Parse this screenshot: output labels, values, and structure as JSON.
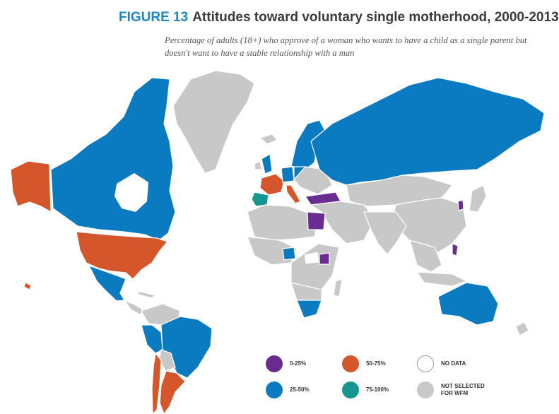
{
  "header": {
    "figure_label": "FIGURE 13",
    "title": "Attitudes toward voluntary single motherhood, 2000-2013",
    "subtitle": "Percentage of adults (18+) who approve of a woman who wants to have a child as a single parent but doesn't want to have a stable relationship with a man"
  },
  "legend": [
    {
      "label": "0-25%",
      "color": "#6a2c91"
    },
    {
      "label": "50-75%",
      "color": "#d4562a"
    },
    {
      "label": "NO DATA",
      "color": "#ffffff"
    },
    {
      "label": "25-50%",
      "color": "#0b7bc1"
    },
    {
      "label": "75-100%",
      "color": "#15968f"
    },
    {
      "label": "NOT SELECTED FOR WFM",
      "color": "#c8c8c8"
    }
  ],
  "map_regions": [
    {
      "name": "Canada",
      "category": "25-50%"
    },
    {
      "name": "Alaska",
      "category": "50-75%"
    },
    {
      "name": "United States",
      "category": "50-75%"
    },
    {
      "name": "Mexico",
      "category": "25-50%"
    },
    {
      "name": "Brazil",
      "category": "25-50%"
    },
    {
      "name": "Peru",
      "category": "25-50%"
    },
    {
      "name": "Argentina",
      "category": "50-75%"
    },
    {
      "name": "Chile",
      "category": "50-75%"
    },
    {
      "name": "Russia",
      "category": "25-50%"
    },
    {
      "name": "Scandinavia",
      "category": "25-50%"
    },
    {
      "name": "United Kingdom",
      "category": "25-50%"
    },
    {
      "name": "Germany",
      "category": "25-50%"
    },
    {
      "name": "Poland",
      "category": "25-50%"
    },
    {
      "name": "France",
      "category": "50-75%"
    },
    {
      "name": "Spain",
      "category": "75-100%"
    },
    {
      "name": "Italy",
      "category": "50-75%"
    },
    {
      "name": "Turkey",
      "category": "0-25%"
    },
    {
      "name": "Egypt",
      "category": "0-25%"
    },
    {
      "name": "Nigeria",
      "category": "25-50%"
    },
    {
      "name": "Kenya",
      "category": "0-25%"
    },
    {
      "name": "South Africa",
      "category": "25-50%"
    },
    {
      "name": "Australia",
      "category": "25-50%"
    },
    {
      "name": "South Korea",
      "category": "0-25%"
    },
    {
      "name": "Philippines",
      "category": "0-25%"
    },
    {
      "name": "Greenland",
      "category": "NOT SELECTED FOR WFM"
    },
    {
      "name": "China",
      "category": "NOT SELECTED FOR WFM"
    },
    {
      "name": "India",
      "category": "NOT SELECTED FOR WFM"
    },
    {
      "name": "Africa (other)",
      "category": "NOT SELECTED FOR WFM"
    },
    {
      "name": "Middle East",
      "category": "NOT SELECTED FOR WFM"
    },
    {
      "name": "Southeast Asia",
      "category": "NOT SELECTED FOR WFM"
    },
    {
      "name": "New Zealand",
      "category": "NOT SELECTED FOR WFM"
    }
  ]
}
